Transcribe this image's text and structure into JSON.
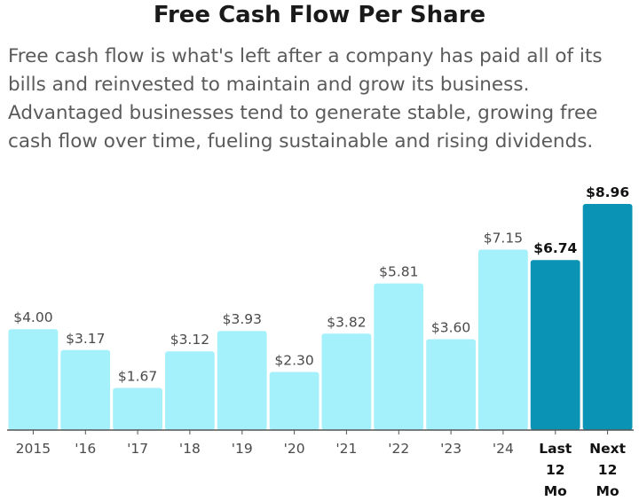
{
  "chart_data": {
    "type": "bar",
    "title": "Free Cash Flow Per Share",
    "subtitle": "Free cash flow is what's left after a company has paid all of its bills and reinvested to maintain and grow its business. Advantaged businesses tend to generate stable, growing free cash flow over time, fueling sustainable and rising dividends.",
    "xlabel": "",
    "ylabel": "",
    "ylim": [
      0,
      8.96
    ],
    "categories": [
      "2015",
      "'16",
      "'17",
      "'18",
      "'19",
      "'20",
      "'21",
      "'22",
      "'23",
      "'24",
      "Last\n12\nMo",
      "Next\n12\nMo"
    ],
    "values": [
      4.0,
      3.17,
      1.67,
      3.12,
      3.93,
      2.3,
      3.82,
      5.81,
      3.6,
      7.15,
      6.74,
      8.96
    ],
    "value_labels": [
      "$4.00",
      "$3.17",
      "$1.67",
      "$3.12",
      "$3.93",
      "$2.30",
      "$3.82",
      "$5.81",
      "$3.60",
      "$7.15",
      "$6.74",
      "$8.96"
    ],
    "highlighted": [
      false,
      false,
      false,
      false,
      false,
      false,
      false,
      false,
      false,
      false,
      true,
      true
    ],
    "colors": {
      "historical": "#a5f1fb",
      "highlight": "#0b93b5",
      "axis": "#555555"
    },
    "grid": false
  }
}
